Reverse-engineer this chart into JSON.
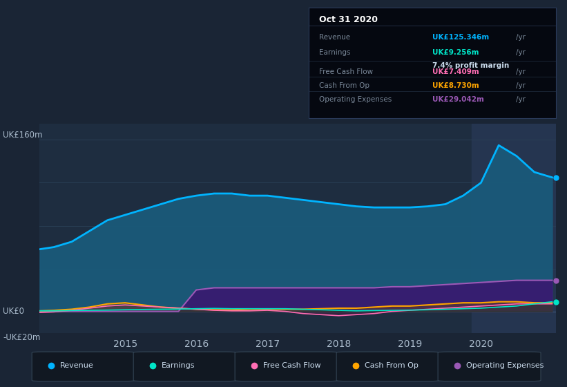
{
  "bg_color": "#1a2535",
  "chart_bg": "#1e2d40",
  "y_label_top": "UK£160m",
  "y_label_zero": "UK£0",
  "y_label_neg": "-UK£20m",
  "ylim": [
    -20,
    175
  ],
  "x_ticks": [
    2015,
    2016,
    2017,
    2018,
    2019,
    2020
  ],
  "info_box": {
    "title": "Oct 31 2020",
    "rows": [
      {
        "label": "Revenue",
        "value": "UK£125.346m",
        "unit": "/yr",
        "color": "#00b4ff"
      },
      {
        "label": "Earnings",
        "value": "UK£9.256m",
        "unit": "/yr",
        "color": "#00e5c8",
        "extra": "7.4% profit margin"
      },
      {
        "label": "Free Cash Flow",
        "value": "UK£7.409m",
        "unit": "/yr",
        "color": "#ff6eb4"
      },
      {
        "label": "Cash From Op",
        "value": "UK£8.730m",
        "unit": "/yr",
        "color": "#ffa500"
      },
      {
        "label": "Operating Expenses",
        "value": "UK£29.042m",
        "unit": "/yr",
        "color": "#9b59b6"
      }
    ]
  },
  "series": {
    "x": [
      2013.8,
      2014.0,
      2014.25,
      2014.5,
      2014.75,
      2015.0,
      2015.25,
      2015.5,
      2015.75,
      2016.0,
      2016.25,
      2016.5,
      2016.75,
      2017.0,
      2017.25,
      2017.5,
      2017.75,
      2018.0,
      2018.25,
      2018.5,
      2018.75,
      2019.0,
      2019.25,
      2019.5,
      2019.75,
      2020.0,
      2020.25,
      2020.5,
      2020.75,
      2021.0
    ],
    "revenue": [
      58,
      60,
      65,
      75,
      85,
      90,
      95,
      100,
      105,
      108,
      110,
      110,
      108,
      108,
      106,
      104,
      102,
      100,
      98,
      97,
      97,
      97,
      98,
      100,
      108,
      120,
      155,
      145,
      130,
      125
    ],
    "earnings": [
      0.5,
      0.5,
      0.8,
      1.0,
      1.2,
      1.5,
      1.8,
      2.0,
      2.2,
      2.5,
      2.8,
      2.5,
      2.5,
      2.5,
      2.5,
      2.0,
      1.5,
      1.0,
      0.5,
      0.8,
      1.0,
      1.2,
      1.5,
      2.0,
      2.5,
      3.0,
      4.0,
      5.0,
      7.0,
      9.0
    ],
    "free_cash_flow": [
      -1,
      -0.5,
      1,
      3,
      5,
      6,
      5,
      4,
      3,
      2,
      1,
      0.5,
      0.5,
      1,
      0,
      -2,
      -3,
      -4,
      -3,
      -2,
      0,
      1,
      2,
      3,
      4,
      5,
      6,
      7,
      7,
      7
    ],
    "cash_from_op": [
      0.5,
      1.0,
      2,
      4,
      7,
      8,
      6,
      4,
      3,
      2,
      1.5,
      1.5,
      2,
      2,
      2,
      2,
      2.5,
      3,
      3,
      4,
      5,
      5,
      6,
      7,
      8,
      8,
      9,
      9,
      8,
      8
    ],
    "op_expenses": [
      0,
      0,
      0,
      0,
      0,
      0,
      0,
      0,
      0,
      20,
      22,
      22,
      22,
      22,
      22,
      22,
      22,
      22,
      22,
      22,
      23,
      23,
      24,
      25,
      26,
      27,
      28,
      29,
      29,
      29
    ],
    "colors": {
      "revenue": "#00b4ff",
      "revenue_fill": "#1a5a7a",
      "earnings": "#00e5c8",
      "free_cash_flow": "#ff6eb4",
      "cash_from_op": "#ffa500",
      "op_expenses": "#9b59b6",
      "op_expenses_fill": "#3a1870"
    }
  },
  "legend": [
    {
      "label": "Revenue",
      "color": "#00b4ff"
    },
    {
      "label": "Earnings",
      "color": "#00e5c8"
    },
    {
      "label": "Free Cash Flow",
      "color": "#ff6eb4"
    },
    {
      "label": "Cash From Op",
      "color": "#ffa500"
    },
    {
      "label": "Operating Expenses",
      "color": "#9b59b6"
    }
  ],
  "highlight_x_start": 2019.87,
  "highlight_color": "#253550",
  "grid_lines": [
    0,
    40,
    80,
    120,
    160
  ],
  "grid_color": "#2a3f55",
  "zero_line_color": "#3a5070"
}
